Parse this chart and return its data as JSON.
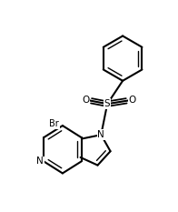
{
  "bg_color": "#ffffff",
  "line_color": "#000000",
  "line_width": 1.5,
  "fig_width": 1.96,
  "fig_height": 2.33,
  "dpi": 100,
  "xlim": [
    0,
    196
  ],
  "ylim": [
    0,
    233
  ]
}
